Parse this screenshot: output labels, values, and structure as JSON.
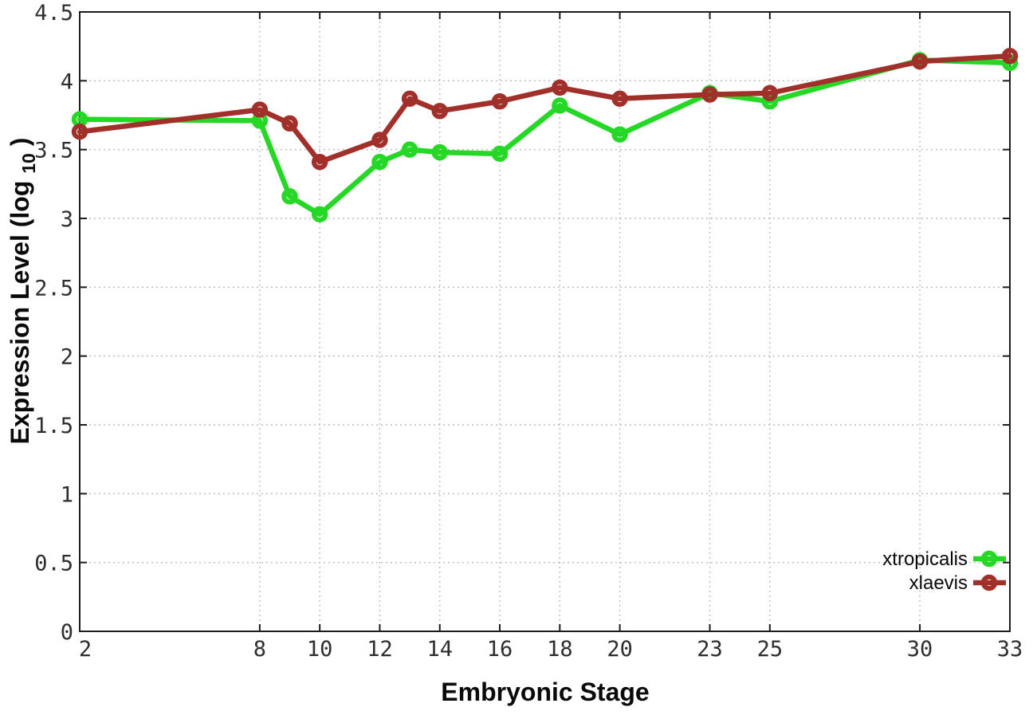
{
  "canvas": {
    "background": "#ffffff",
    "axis_color": "#1c1c1c",
    "grid_color": "#b5b5b5",
    "tick_label_color": "#2e2e2e"
  },
  "chart_data": {
    "type": "line",
    "title": "",
    "xlabel": "Embryonic Stage",
    "ylabel": {
      "prefix": "Expression Level (log",
      "sub": "10",
      "suffix": ")"
    },
    "xlim": [
      2,
      33
    ],
    "ylim": [
      0,
      4.5
    ],
    "grid": true,
    "x_ticks": [
      2,
      8,
      10,
      12,
      14,
      16,
      18,
      20,
      23,
      25,
      30,
      33
    ],
    "x_tick_labels": [
      "2",
      "8",
      "10",
      "12",
      "14",
      "16",
      "18",
      "20",
      "23",
      "25",
      "30",
      "33"
    ],
    "y_ticks": [
      0,
      0.5,
      1,
      1.5,
      2,
      2.5,
      3,
      3.5,
      4,
      4.5
    ],
    "y_tick_labels": [
      "0",
      "0.5",
      "1",
      "1.5",
      "2",
      "2.5",
      "3",
      "3.5",
      "4",
      "4.5"
    ],
    "x": [
      2,
      8,
      9,
      10,
      12,
      13,
      14,
      16,
      18,
      20,
      23,
      25,
      30,
      33
    ],
    "series": [
      {
        "name": "xtropicalis",
        "color": "#25d825",
        "marker": "open-circle",
        "values": [
          3.72,
          3.71,
          3.16,
          3.03,
          3.41,
          3.5,
          3.48,
          3.47,
          3.82,
          3.61,
          3.91,
          3.85,
          4.15,
          4.13
        ]
      },
      {
        "name": "xlaevis",
        "color": "#a1302a",
        "marker": "open-circle",
        "values": [
          3.63,
          3.79,
          3.69,
          3.41,
          3.57,
          3.87,
          3.78,
          3.85,
          3.95,
          3.87,
          3.9,
          3.91,
          4.14,
          4.18
        ]
      }
    ],
    "legend": {
      "position": "bottom-right",
      "entries": [
        "xtropicalis",
        "xlaevis"
      ]
    }
  }
}
